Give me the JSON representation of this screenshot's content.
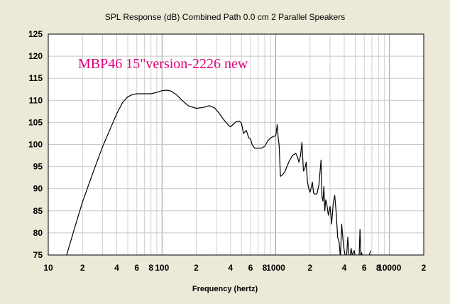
{
  "chart_data": {
    "type": "line",
    "title": "SPL Response (dB)   Combined   Path 0.0 cm   2 Parallel Speakers",
    "xlabel": "Frequency (hertz)",
    "ylabel": "",
    "annotation": "MBP46 15\"version-2226 new",
    "xscale": "log",
    "xlim": [
      10,
      20000
    ],
    "ylim": [
      75,
      125
    ],
    "grid": true,
    "y_ticks": [
      75,
      80,
      85,
      90,
      95,
      100,
      105,
      110,
      115,
      120,
      125
    ],
    "x_tick_labels": [
      {
        "value": 10,
        "label": "10"
      },
      {
        "value": 20,
        "label": "2"
      },
      {
        "value": 40,
        "label": "4"
      },
      {
        "value": 60,
        "label": "6"
      },
      {
        "value": 80,
        "label": "8"
      },
      {
        "value": 100,
        "label": "100"
      },
      {
        "value": 200,
        "label": "2"
      },
      {
        "value": 400,
        "label": "4"
      },
      {
        "value": 600,
        "label": "6"
      },
      {
        "value": 800,
        "label": "8"
      },
      {
        "value": 1000,
        "label": "1000"
      },
      {
        "value": 2000,
        "label": "2"
      },
      {
        "value": 4000,
        "label": "4"
      },
      {
        "value": 6000,
        "label": "6"
      },
      {
        "value": 8000,
        "label": "8"
      },
      {
        "value": 10000,
        "label": "10000"
      },
      {
        "value": 20000,
        "label": "2"
      }
    ],
    "line_color": "#000000",
    "annotation_color": "#e0007a",
    "series": [
      {
        "x": [
          14.5,
          17,
          20,
          25,
          30,
          35,
          40,
          45,
          50,
          55,
          60,
          70,
          80,
          90,
          100,
          110,
          120,
          135,
          150,
          170,
          200,
          230,
          260,
          290,
          320,
          350,
          380,
          400,
          420,
          450,
          480,
          500,
          520,
          550,
          580,
          600,
          620,
          650,
          700,
          750,
          800,
          850,
          900,
          950,
          1000,
          1030,
          1050,
          1070,
          1100,
          1150,
          1200,
          1300,
          1400,
          1500,
          1550,
          1600,
          1650,
          1700,
          1750,
          1800,
          1850,
          1900,
          1950,
          2000,
          2050,
          2100,
          2150,
          2200,
          2300,
          2400,
          2500,
          2550,
          2600,
          2650,
          2700,
          2750,
          2800,
          2900,
          3000,
          3100,
          3200,
          3300,
          3400,
          3500,
          3600,
          3700,
          3800,
          3900,
          4000,
          4100,
          4200,
          4300,
          4400,
          4500,
          4600,
          4700,
          4800,
          4900,
          5000,
          5200,
          5400,
          5500,
          5600,
          5700,
          5800,
          6000,
          6300,
          6600,
          6800
        ],
        "y": [
          75,
          81,
          87,
          94,
          99.5,
          103.5,
          107,
          109.5,
          110.8,
          111.3,
          111.5,
          111.5,
          111.5,
          111.8,
          112.2,
          112.3,
          112.1,
          111.2,
          110,
          108.8,
          108.2,
          108.4,
          108.8,
          108.3,
          107,
          105.6,
          104.5,
          104,
          104.5,
          105.2,
          105.3,
          104.8,
          102.5,
          103.2,
          101.5,
          101.3,
          100,
          99.2,
          99.2,
          99.2,
          99.6,
          100.8,
          101.5,
          101.8,
          102,
          104.5,
          101.5,
          100,
          92.8,
          93.2,
          93.8,
          96,
          97.5,
          98,
          97.2,
          96,
          97.5,
          100.5,
          94,
          94.5,
          96,
          91.5,
          90,
          89.2,
          90.3,
          91.5,
          89,
          88.8,
          88.8,
          91,
          96.5,
          88,
          87.2,
          90.5,
          85,
          87.5,
          86.8,
          84,
          86,
          82,
          86.8,
          88.5,
          84.5,
          79,
          78,
          74.5,
          82,
          78.5,
          76,
          74.5,
          75,
          79,
          75,
          74.5,
          76.5,
          75,
          75.5,
          76,
          74.5,
          75,
          74.5,
          80.8,
          74.5,
          75.5,
          74.5,
          74,
          75,
          74.5,
          76
        ]
      }
    ]
  }
}
